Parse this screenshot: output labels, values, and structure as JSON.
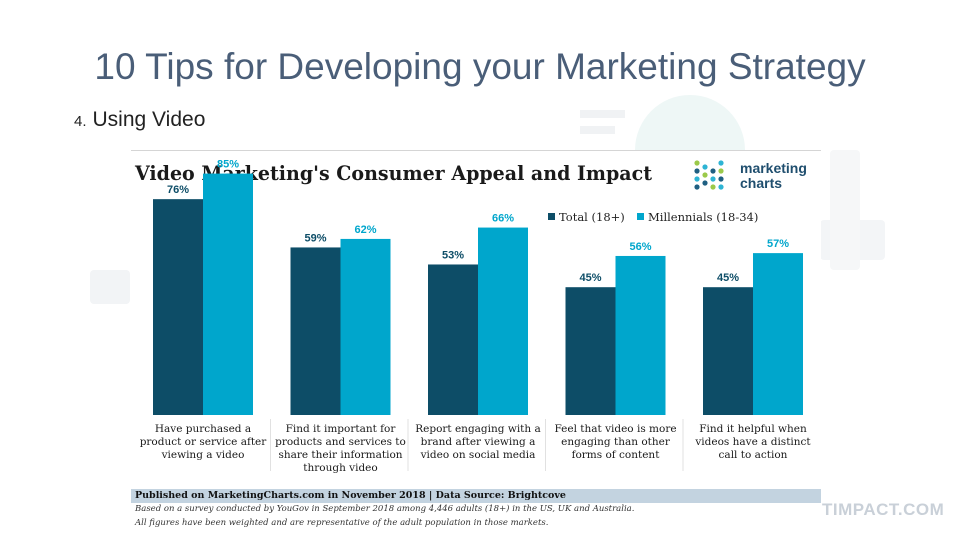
{
  "slide": {
    "title": "10 Tips for Developing your Marketing Strategy",
    "subtitle_number": "4.",
    "subtitle_text": "Using Video",
    "watermark": "TIMPACT.COM"
  },
  "brand": {
    "logo_line1": "marketing",
    "logo_line2": "charts"
  },
  "colors": {
    "total": "#0d4d67",
    "millennials": "#00a6cc",
    "title_text": "#4a5e78"
  },
  "chart_data": {
    "type": "bar",
    "title": "Video Marketing's Consumer Appeal and Impact",
    "categories": [
      [
        "Have purchased a",
        "product or service after",
        "viewing a video"
      ],
      [
        "Find it important for",
        "products and services to",
        "share their information",
        "through video"
      ],
      [
        "Report engaging with a",
        "brand after viewing a",
        "video on social media"
      ],
      [
        "Feel that video is more",
        "engaging than other",
        "forms of content"
      ],
      [
        "Find it helpful when",
        "videos have a distinct",
        "call to action"
      ]
    ],
    "series": [
      {
        "name": "Total (18+)",
        "values": [
          76,
          59,
          53,
          45,
          45
        ],
        "labels": [
          "76%",
          "59%",
          "53%",
          "45%",
          "45%"
        ]
      },
      {
        "name": "Millennials (18-34)",
        "values": [
          85,
          62,
          66,
          56,
          57
        ],
        "labels": [
          "85%",
          "62%",
          "66%",
          "56%",
          "57%"
        ]
      }
    ],
    "ylim": [
      0,
      100
    ],
    "legend_position": "top-right",
    "grid": false,
    "source": "Published on MarketingCharts.com in November 2018 | Data Source: Brightcove",
    "notes": [
      "Based on a survey conducted by YouGov in September 2018 among 4,446 adults (18+) in the US, UK and Australia.",
      "All figures have been weighted and are representative of the adult population in those markets."
    ]
  }
}
